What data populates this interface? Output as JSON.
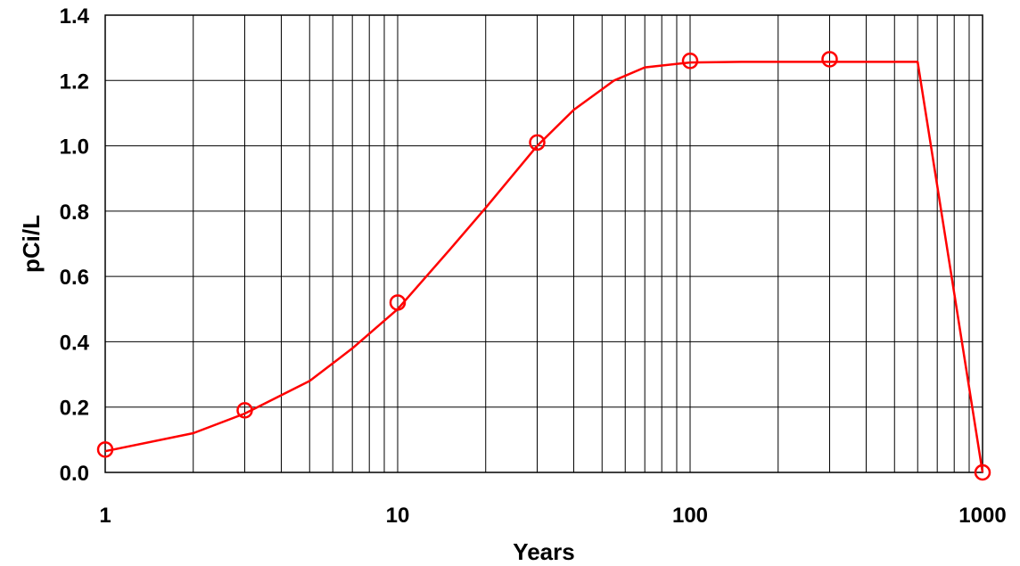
{
  "chart_data": {
    "type": "line",
    "title": "",
    "xlabel": "Years",
    "ylabel": "pCi/L",
    "xscale": "log",
    "xlim": [
      1,
      1000
    ],
    "ylim": [
      0,
      1.4
    ],
    "grid": true,
    "x_tick_labels": [
      "1",
      "10",
      "100",
      "1000"
    ],
    "y_tick_labels": [
      "0.0",
      "0.2",
      "0.4",
      "0.6",
      "0.8",
      "1.0",
      "1.2",
      "1.4"
    ],
    "line_color": "#ff0000",
    "series": [
      {
        "kind": "curve",
        "x": [
          1,
          2,
          3,
          5,
          7,
          10,
          15,
          20,
          30,
          40,
          55,
          70,
          100,
          150,
          300,
          600,
          1000
        ],
        "y": [
          0.065,
          0.12,
          0.18,
          0.28,
          0.38,
          0.5,
          0.68,
          0.81,
          1.0,
          1.11,
          1.2,
          1.24,
          1.255,
          1.257,
          1.257,
          1.257,
          0.0
        ]
      },
      {
        "kind": "markers",
        "marker": "open-circle",
        "x": [
          1,
          3,
          10,
          30,
          100,
          300,
          1000
        ],
        "y": [
          0.07,
          0.19,
          0.52,
          1.01,
          1.26,
          1.265,
          0.0
        ]
      }
    ]
  }
}
